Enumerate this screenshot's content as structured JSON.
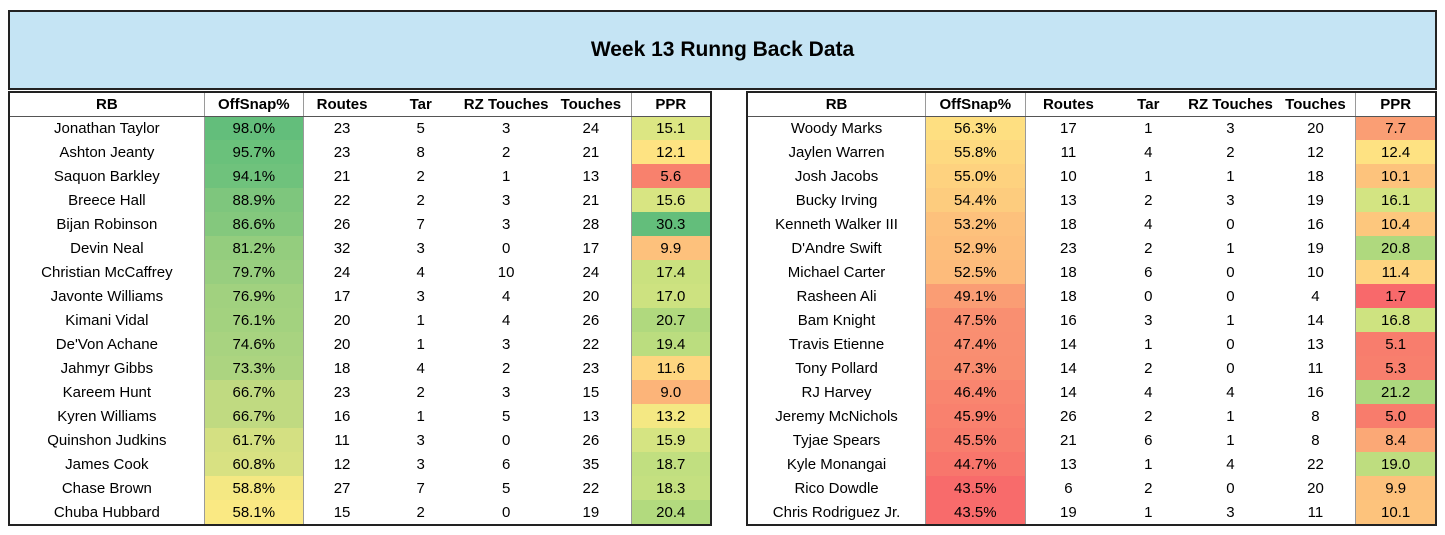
{
  "title": "Week 13 Runng Back Data",
  "columns": [
    "RB",
    "OffSnap%",
    "Routes",
    "Tar",
    "RZ Touches",
    "Touches",
    "PPR"
  ],
  "left_rows": [
    {
      "rb": "Jonathan Taylor",
      "snap": "98.0%",
      "routes": "23",
      "tar": "5",
      "rz": "3",
      "touches": "24",
      "ppr": "15.1",
      "snap_color": "#63be7b",
      "ppr_color": "#dce683"
    },
    {
      "rb": "Ashton Jeanty",
      "snap": "95.7%",
      "routes": "23",
      "tar": "8",
      "rz": "2",
      "touches": "21",
      "ppr": "12.1",
      "snap_color": "#6ac17b",
      "ppr_color": "#fee382"
    },
    {
      "rb": "Saquon Barkley",
      "snap": "94.1%",
      "routes": "21",
      "tar": "2",
      "rz": "1",
      "touches": "13",
      "ppr": "5.6",
      "snap_color": "#6fc27c",
      "ppr_color": "#f8816d"
    },
    {
      "rb": "Breece Hall",
      "snap": "88.9%",
      "routes": "22",
      "tar": "2",
      "rz": "3",
      "touches": "21",
      "ppr": "15.6",
      "snap_color": "#7ec67d",
      "ppr_color": "#d8e582"
    },
    {
      "rb": "Bijan Robinson",
      "snap": "86.6%",
      "routes": "26",
      "tar": "7",
      "rz": "3",
      "touches": "28",
      "ppr": "30.3",
      "snap_color": "#84c87d",
      "ppr_color": "#63be7b"
    },
    {
      "rb": "Devin Neal",
      "snap": "81.2%",
      "routes": "32",
      "tar": "3",
      "rz": "0",
      "touches": "17",
      "ppr": "9.9",
      "snap_color": "#94cd7e",
      "ppr_color": "#fdc17c"
    },
    {
      "rb": "Christian McCaffrey",
      "snap": "79.7%",
      "routes": "24",
      "tar": "4",
      "rz": "10",
      "touches": "24",
      "ppr": "17.4",
      "snap_color": "#98ce7f",
      "ppr_color": "#cae17f"
    },
    {
      "rb": "Javonte Williams",
      "snap": "76.9%",
      "routes": "17",
      "tar": "3",
      "rz": "4",
      "touches": "20",
      "ppr": "17.0",
      "snap_color": "#a1d17f",
      "ppr_color": "#cde280"
    },
    {
      "rb": "Kimani Vidal",
      "snap": "76.1%",
      "routes": "20",
      "tar": "1",
      "rz": "4",
      "touches": "26",
      "ppr": "20.7",
      "snap_color": "#a3d27f",
      "ppr_color": "#b0d97e"
    },
    {
      "rb": "De'Von Achane",
      "snap": "74.6%",
      "routes": "20",
      "tar": "1",
      "rz": "3",
      "touches": "22",
      "ppr": "19.4",
      "snap_color": "#a8d380",
      "ppr_color": "#bbdd7f"
    },
    {
      "rb": "Jahmyr Gibbs",
      "snap": "73.3%",
      "routes": "18",
      "tar": "4",
      "rz": "2",
      "touches": "23",
      "ppr": "11.6",
      "snap_color": "#acd480",
      "ppr_color": "#fed680"
    },
    {
      "rb": "Kareem Hunt",
      "snap": "66.7%",
      "routes": "23",
      "tar": "2",
      "rz": "3",
      "touches": "15",
      "ppr": "9.0",
      "snap_color": "#c0da81",
      "ppr_color": "#fcb479"
    },
    {
      "rb": "Kyren Williams",
      "snap": "66.7%",
      "routes": "16",
      "tar": "1",
      "rz": "5",
      "touches": "13",
      "ppr": "13.2",
      "snap_color": "#c0da81",
      "ppr_color": "#f4e883"
    },
    {
      "rb": "Quinshon Judkins",
      "snap": "61.7%",
      "routes": "11",
      "tar": "3",
      "rz": "0",
      "touches": "26",
      "ppr": "15.9",
      "snap_color": "#d4e082",
      "ppr_color": "#d5e482"
    },
    {
      "rb": "James Cook",
      "snap": "60.8%",
      "routes": "12",
      "tar": "3",
      "rz": "6",
      "touches": "35",
      "ppr": "18.7",
      "snap_color": "#d8e182",
      "ppr_color": "#c1df80"
    },
    {
      "rb": "Chase Brown",
      "snap": "58.8%",
      "routes": "27",
      "tar": "7",
      "rz": "5",
      "touches": "22",
      "ppr": "18.3",
      "snap_color": "#f4e883",
      "ppr_color": "#c4e080"
    },
    {
      "rb": "Chuba Hubbard",
      "snap": "58.1%",
      "routes": "15",
      "tar": "2",
      "rz": "0",
      "touches": "19",
      "ppr": "20.4",
      "snap_color": "#fae983",
      "ppr_color": "#b2da7e"
    }
  ],
  "right_rows": [
    {
      "rb": "Woody Marks",
      "snap": "56.3%",
      "routes": "17",
      "tar": "1",
      "rz": "3",
      "touches": "20",
      "ppr": "7.7",
      "snap_color": "#fedf81",
      "ppr_color": "#fa9e74"
    },
    {
      "rb": "Jaylen Warren",
      "snap": "55.8%",
      "routes": "11",
      "tar": "4",
      "rz": "2",
      "touches": "12",
      "ppr": "12.4",
      "snap_color": "#fed980",
      "ppr_color": "#fee282"
    },
    {
      "rb": "Josh Jacobs",
      "snap": "55.0%",
      "routes": "10",
      "tar": "1",
      "rz": "1",
      "touches": "18",
      "ppr": "10.1",
      "snap_color": "#fed27f",
      "ppr_color": "#fdc37c"
    },
    {
      "rb": "Bucky Irving",
      "snap": "54.4%",
      "routes": "13",
      "tar": "2",
      "rz": "3",
      "touches": "19",
      "ppr": "16.1",
      "snap_color": "#fdcc7e",
      "ppr_color": "#d3e482"
    },
    {
      "rb": "Kenneth Walker III",
      "snap": "53.2%",
      "routes": "18",
      "tar": "4",
      "rz": "0",
      "touches": "16",
      "ppr": "10.4",
      "snap_color": "#fdc17c",
      "ppr_color": "#fdc77d"
    },
    {
      "rb": "D'Andre Swift",
      "snap": "52.9%",
      "routes": "23",
      "tar": "2",
      "rz": "1",
      "touches": "19",
      "ppr": "20.8",
      "snap_color": "#fdbe7b",
      "ppr_color": "#afd97e"
    },
    {
      "rb": "Michael Carter",
      "snap": "52.5%",
      "routes": "18",
      "tar": "6",
      "rz": "0",
      "touches": "10",
      "ppr": "11.4",
      "snap_color": "#fdbb7b",
      "ppr_color": "#fed480"
    },
    {
      "rb": "Rasheen Ali",
      "snap": "49.1%",
      "routes": "18",
      "tar": "0",
      "rz": "0",
      "touches": "4",
      "ppr": "1.7",
      "snap_color": "#fa9d74",
      "ppr_color": "#f8696b"
    },
    {
      "rb": "Bam Knight",
      "snap": "47.5%",
      "routes": "16",
      "tar": "3",
      "rz": "1",
      "touches": "14",
      "ppr": "16.8",
      "snap_color": "#f98f71",
      "ppr_color": "#cee380"
    },
    {
      "rb": "Travis Etienne",
      "snap": "47.4%",
      "routes": "14",
      "tar": "1",
      "rz": "0",
      "touches": "13",
      "ppr": "5.1",
      "snap_color": "#f98e71",
      "ppr_color": "#f87d6d"
    },
    {
      "rb": "Tony Pollard",
      "snap": "47.3%",
      "routes": "14",
      "tar": "2",
      "rz": "0",
      "touches": "11",
      "ppr": "5.3",
      "snap_color": "#f98d70",
      "ppr_color": "#f87f6d"
    },
    {
      "rb": "RJ Harvey",
      "snap": "46.4%",
      "routes": "14",
      "tar": "4",
      "rz": "4",
      "touches": "16",
      "ppr": "21.2",
      "snap_color": "#f9856f",
      "ppr_color": "#acd87e"
    },
    {
      "rb": "Jeremy McNichols",
      "snap": "45.9%",
      "routes": "26",
      "tar": "2",
      "rz": "1",
      "touches": "8",
      "ppr": "5.0",
      "snap_color": "#f9816e",
      "ppr_color": "#f87c6c"
    },
    {
      "rb": "Tyjae Spears",
      "snap": "45.5%",
      "routes": "21",
      "tar": "6",
      "rz": "1",
      "touches": "8",
      "ppr": "8.4",
      "snap_color": "#f87d6d",
      "ppr_color": "#fba876"
    },
    {
      "rb": "Kyle Monangai",
      "snap": "44.7%",
      "routes": "13",
      "tar": "1",
      "rz": "4",
      "touches": "22",
      "ppr": "19.0",
      "snap_color": "#f8766c",
      "ppr_color": "#bedd7f"
    },
    {
      "rb": "Rico Dowdle",
      "snap": "43.5%",
      "routes": "6",
      "tar": "2",
      "rz": "0",
      "touches": "20",
      "ppr": "9.9",
      "snap_color": "#f86b6b",
      "ppr_color": "#fdc17c"
    },
    {
      "rb": "Chris Rodriguez Jr.",
      "snap": "43.5%",
      "routes": "19",
      "tar": "1",
      "rz": "3",
      "touches": "11",
      "ppr": "10.1",
      "snap_color": "#f86b6b",
      "ppr_color": "#fdc37c"
    }
  ]
}
